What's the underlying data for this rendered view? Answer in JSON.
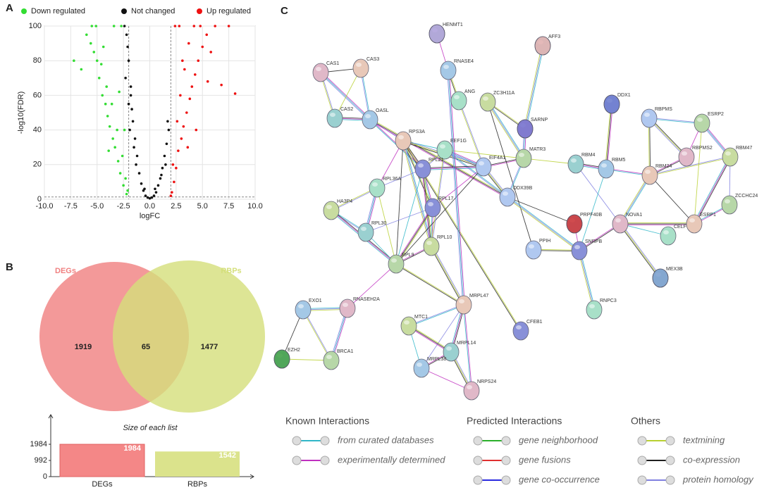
{
  "panel_labels": [
    "A",
    "B",
    "C"
  ],
  "chart_data": [
    {
      "type": "scatter",
      "xlabel": "logFC",
      "ylabel": "-log10(FDR)",
      "xlim": [
        -10,
        10
      ],
      "xticks": [
        {
          "value": -10,
          "label": "-10.0"
        },
        -7.5,
        {
          "value": -5,
          "label": "-5.0"
        },
        -2.5,
        {
          "value": 0,
          "label": "0.0"
        },
        2.5,
        {
          "value": 5,
          "label": "5.0"
        },
        7.5,
        {
          "value": 10,
          "label": "10.0"
        }
      ],
      "ylim": [
        0,
        100
      ],
      "yticks": [
        0,
        20,
        40,
        60,
        80,
        100
      ],
      "grid": true,
      "legend": "top",
      "cutoff_lines": {
        "x": [
          -2,
          2
        ],
        "y": 1.3
      },
      "series": [
        {
          "name": "Down regulated",
          "color": "#33dd33",
          "x": [
            -2.2,
            -2.5,
            -2.8,
            -3.0,
            -3.3,
            -3.5,
            -3.8,
            -4.0,
            -4.2,
            -4.5,
            -4.8,
            -5.0,
            -5.3,
            -5.6,
            -6.0,
            -6.5,
            -7.2,
            -2.3,
            -2.6,
            -3.1,
            -3.6,
            -4.1,
            -4.6,
            -5.1,
            -2.4,
            -2.9,
            -3.4,
            -2.1,
            -2.7,
            -5.5,
            -4.4,
            -3.9
          ],
          "values": [
            3,
            8,
            15,
            22,
            30,
            35,
            42,
            48,
            55,
            60,
            70,
            80,
            85,
            90,
            95,
            75,
            80,
            12,
            25,
            40,
            55,
            65,
            78,
            100,
            40,
            62,
            100,
            5,
            100,
            100,
            88,
            28
          ]
        },
        {
          "name": "Not changed",
          "color": "#111111",
          "x": [
            -2.4,
            -2.0,
            -1.8,
            -1.6,
            -1.4,
            -1.2,
            -1.0,
            -0.8,
            -0.6,
            -0.4,
            -0.2,
            0,
            0.2,
            0.4,
            0.6,
            0.8,
            1.0,
            1.2,
            1.4,
            1.6,
            1.8,
            -2.2,
            -2.0,
            -1.7,
            -1.5,
            1.5,
            1.7,
            -2.3,
            -1.9,
            -1.3,
            -0.5,
            0.5,
            1.1,
            -2.1,
            -1.8
          ],
          "values": [
            100,
            80,
            60,
            45,
            35,
            25,
            15,
            9,
            5,
            2,
            1,
            0.5,
            1,
            2,
            4,
            8,
            12,
            18,
            25,
            32,
            40,
            95,
            55,
            52,
            30,
            20,
            45,
            70,
            40,
            20,
            6,
            6,
            14,
            88,
            65
          ]
        },
        {
          "name": "Up regulated",
          "color": "#ee1111",
          "x": [
            2.1,
            2.3,
            2.5,
            2.7,
            3.0,
            3.2,
            3.5,
            3.8,
            4.0,
            4.3,
            4.6,
            5.0,
            5.4,
            5.8,
            6.2,
            6.8,
            7.5,
            2.2,
            2.6,
            2.9,
            3.3,
            3.7,
            4.2,
            4.8,
            5.5,
            2.4,
            2.8,
            3.1,
            8.1,
            3.6,
            4.4,
            2.0
          ],
          "values": [
            4,
            10,
            18,
            28,
            35,
            42,
            50,
            58,
            65,
            72,
            80,
            88,
            95,
            85,
            100,
            66,
            100,
            20,
            45,
            60,
            75,
            90,
            100,
            100,
            68,
            100,
            100,
            80,
            61,
            30,
            40,
            2
          ]
        }
      ]
    },
    {
      "type": "venn",
      "series": [
        {
          "name": "DEGs",
          "color": "#f08080",
          "values": [
            1919
          ]
        },
        {
          "name": "RBPs",
          "color": "#d4df7a",
          "values": [
            1477
          ]
        }
      ],
      "intersection": 65
    },
    {
      "type": "bar",
      "title": "Size of each list",
      "categories": [
        "DEGs",
        "RBPs"
      ],
      "values": [
        1984,
        1542
      ],
      "colors": [
        "#f48787",
        "#dbe38c"
      ],
      "ylim": [
        0,
        3800
      ],
      "yticks": [
        0,
        992,
        1984
      ]
    }
  ],
  "network": {
    "nodes": [
      "HENMT1",
      "AFF3",
      "RNASE4",
      "CAS1",
      "CAS3",
      "ANG",
      "ZC3H11A",
      "DDX1",
      "RBPMS",
      "ESRP2",
      "CAS2",
      "OASL",
      "SARNP",
      "RPS3A",
      "EEF1G",
      "RBM47",
      "RPL21",
      "EIF4A1",
      "MATR3",
      "RBM4",
      "RBM5",
      "RBPMS2",
      "RBM24",
      "RPL36A",
      "HA3P4",
      "RPL17",
      "DDX39B",
      "ZCCHC24",
      "RPL30",
      "PRPF40B",
      "NOVA1",
      "ESRP1",
      "CELF",
      "RPL10",
      "SNRPB",
      "PPIH",
      "RPL9",
      "MEX3B",
      "EXO1",
      "RNASEH2A",
      "MRPL47",
      "RNPC3",
      "MTC1",
      "CFEB1",
      "EZH2",
      "BRCA1",
      "MRPL14",
      "MRPL38",
      "NRPS24"
    ],
    "legend": [
      {
        "title": "Known Interactions",
        "items": [
          {
            "label": "from curated databases",
            "color": "#2fb6c8"
          },
          {
            "label": "experimentally determined",
            "color": "#c030c0"
          }
        ]
      },
      {
        "title": "Predicted Interactions",
        "items": [
          {
            "label": "gene neighborhood",
            "color": "#2ab02a"
          },
          {
            "label": "gene fusions",
            "color": "#e03030"
          },
          {
            "label": "gene co-occurrence",
            "color": "#2a2ae0"
          }
        ]
      },
      {
        "title": "Others",
        "items": [
          {
            "label": "textmining",
            "color": "#b8d030"
          },
          {
            "label": "co-expression",
            "color": "#202020"
          },
          {
            "label": "protein homology",
            "color": "#8080e0"
          }
        ]
      }
    ]
  }
}
